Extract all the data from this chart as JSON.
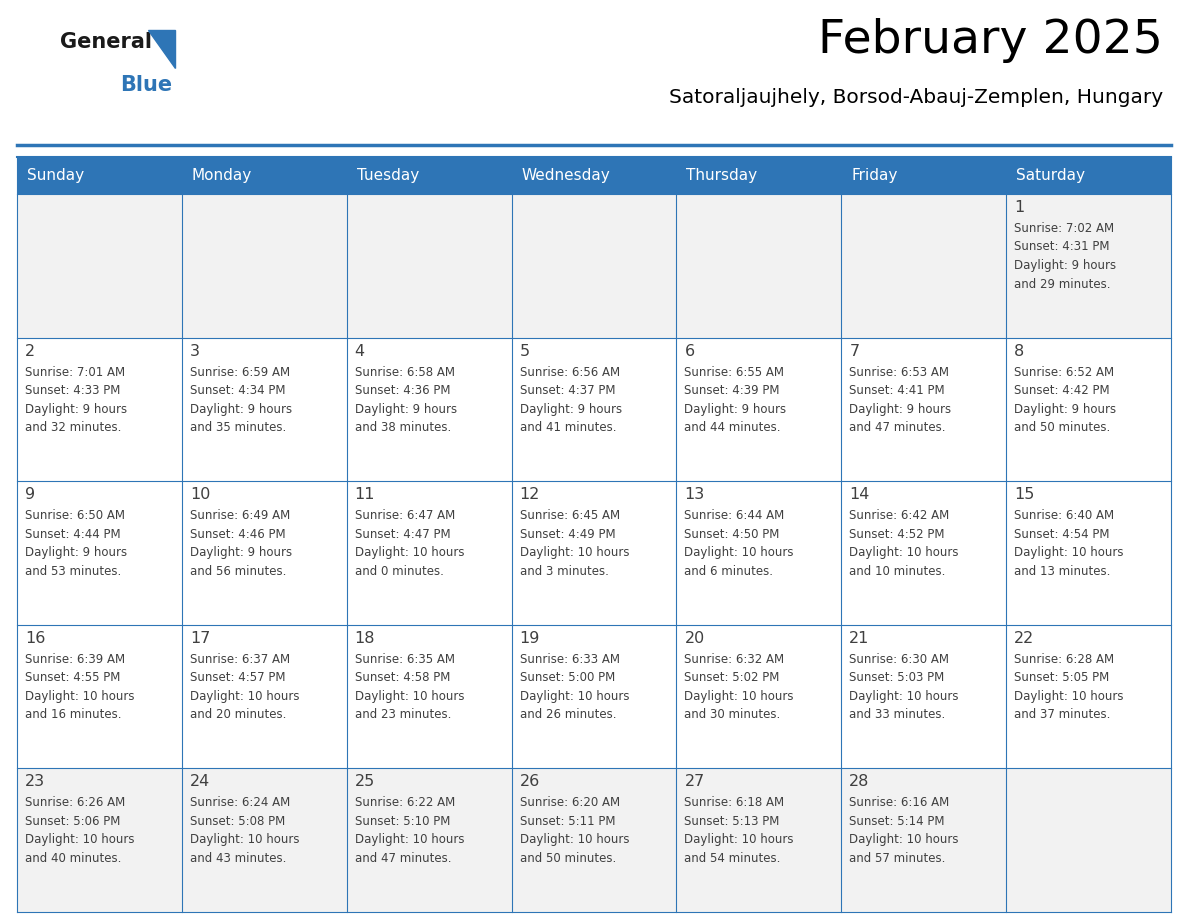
{
  "title": "February 2025",
  "subtitle": "Satoraljaujhely, Borsod-Abauj-Zemplen, Hungary",
  "header_color": "#2E75B6",
  "header_text_color": "#FFFFFF",
  "days_of_week": [
    "Sunday",
    "Monday",
    "Tuesday",
    "Wednesday",
    "Thursday",
    "Friday",
    "Saturday"
  ],
  "cell_bg_light": "#F2F2F2",
  "cell_bg_white": "#FFFFFF",
  "border_color": "#2E75B6",
  "day_number_color": "#404040",
  "text_color": "#404040",
  "logo_general_color": "#1A1A1A",
  "logo_blue_color": "#2E75B6",
  "weeks": [
    [
      null,
      null,
      null,
      null,
      null,
      null,
      1
    ],
    [
      2,
      3,
      4,
      5,
      6,
      7,
      8
    ],
    [
      9,
      10,
      11,
      12,
      13,
      14,
      15
    ],
    [
      16,
      17,
      18,
      19,
      20,
      21,
      22
    ],
    [
      23,
      24,
      25,
      26,
      27,
      28,
      null
    ]
  ],
  "cell_data": {
    "1": {
      "sunrise": "7:02 AM",
      "sunset": "4:31 PM",
      "daylight_h": "9 hours",
      "daylight_m": "and 29 minutes."
    },
    "2": {
      "sunrise": "7:01 AM",
      "sunset": "4:33 PM",
      "daylight_h": "9 hours",
      "daylight_m": "and 32 minutes."
    },
    "3": {
      "sunrise": "6:59 AM",
      "sunset": "4:34 PM",
      "daylight_h": "9 hours",
      "daylight_m": "and 35 minutes."
    },
    "4": {
      "sunrise": "6:58 AM",
      "sunset": "4:36 PM",
      "daylight_h": "9 hours",
      "daylight_m": "and 38 minutes."
    },
    "5": {
      "sunrise": "6:56 AM",
      "sunset": "4:37 PM",
      "daylight_h": "9 hours",
      "daylight_m": "and 41 minutes."
    },
    "6": {
      "sunrise": "6:55 AM",
      "sunset": "4:39 PM",
      "daylight_h": "9 hours",
      "daylight_m": "and 44 minutes."
    },
    "7": {
      "sunrise": "6:53 AM",
      "sunset": "4:41 PM",
      "daylight_h": "9 hours",
      "daylight_m": "and 47 minutes."
    },
    "8": {
      "sunrise": "6:52 AM",
      "sunset": "4:42 PM",
      "daylight_h": "9 hours",
      "daylight_m": "and 50 minutes."
    },
    "9": {
      "sunrise": "6:50 AM",
      "sunset": "4:44 PM",
      "daylight_h": "9 hours",
      "daylight_m": "and 53 minutes."
    },
    "10": {
      "sunrise": "6:49 AM",
      "sunset": "4:46 PM",
      "daylight_h": "9 hours",
      "daylight_m": "and 56 minutes."
    },
    "11": {
      "sunrise": "6:47 AM",
      "sunset": "4:47 PM",
      "daylight_h": "10 hours",
      "daylight_m": "and 0 minutes."
    },
    "12": {
      "sunrise": "6:45 AM",
      "sunset": "4:49 PM",
      "daylight_h": "10 hours",
      "daylight_m": "and 3 minutes."
    },
    "13": {
      "sunrise": "6:44 AM",
      "sunset": "4:50 PM",
      "daylight_h": "10 hours",
      "daylight_m": "and 6 minutes."
    },
    "14": {
      "sunrise": "6:42 AM",
      "sunset": "4:52 PM",
      "daylight_h": "10 hours",
      "daylight_m": "and 10 minutes."
    },
    "15": {
      "sunrise": "6:40 AM",
      "sunset": "4:54 PM",
      "daylight_h": "10 hours",
      "daylight_m": "and 13 minutes."
    },
    "16": {
      "sunrise": "6:39 AM",
      "sunset": "4:55 PM",
      "daylight_h": "10 hours",
      "daylight_m": "and 16 minutes."
    },
    "17": {
      "sunrise": "6:37 AM",
      "sunset": "4:57 PM",
      "daylight_h": "10 hours",
      "daylight_m": "and 20 minutes."
    },
    "18": {
      "sunrise": "6:35 AM",
      "sunset": "4:58 PM",
      "daylight_h": "10 hours",
      "daylight_m": "and 23 minutes."
    },
    "19": {
      "sunrise": "6:33 AM",
      "sunset": "5:00 PM",
      "daylight_h": "10 hours",
      "daylight_m": "and 26 minutes."
    },
    "20": {
      "sunrise": "6:32 AM",
      "sunset": "5:02 PM",
      "daylight_h": "10 hours",
      "daylight_m": "and 30 minutes."
    },
    "21": {
      "sunrise": "6:30 AM",
      "sunset": "5:03 PM",
      "daylight_h": "10 hours",
      "daylight_m": "and 33 minutes."
    },
    "22": {
      "sunrise": "6:28 AM",
      "sunset": "5:05 PM",
      "daylight_h": "10 hours",
      "daylight_m": "and 37 minutes."
    },
    "23": {
      "sunrise": "6:26 AM",
      "sunset": "5:06 PM",
      "daylight_h": "10 hours",
      "daylight_m": "and 40 minutes."
    },
    "24": {
      "sunrise": "6:24 AM",
      "sunset": "5:08 PM",
      "daylight_h": "10 hours",
      "daylight_m": "and 43 minutes."
    },
    "25": {
      "sunrise": "6:22 AM",
      "sunset": "5:10 PM",
      "daylight_h": "10 hours",
      "daylight_m": "and 47 minutes."
    },
    "26": {
      "sunrise": "6:20 AM",
      "sunset": "5:11 PM",
      "daylight_h": "10 hours",
      "daylight_m": "and 50 minutes."
    },
    "27": {
      "sunrise": "6:18 AM",
      "sunset": "5:13 PM",
      "daylight_h": "10 hours",
      "daylight_m": "and 54 minutes."
    },
    "28": {
      "sunrise": "6:16 AM",
      "sunset": "5:14 PM",
      "daylight_h": "10 hours",
      "daylight_m": "and 57 minutes."
    }
  }
}
